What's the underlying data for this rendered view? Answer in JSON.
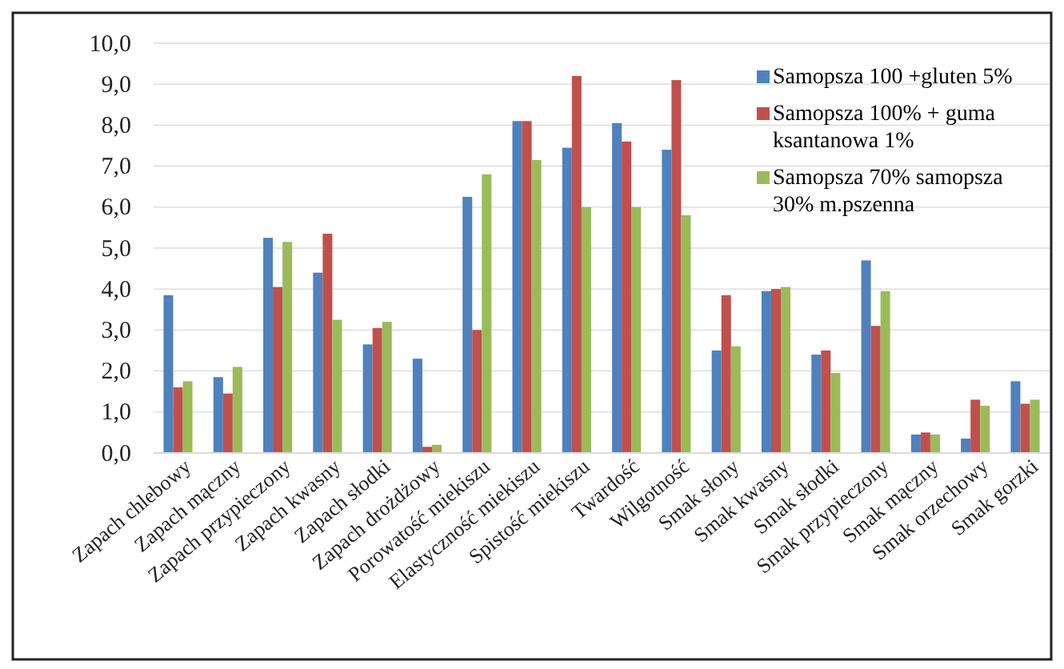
{
  "chart_data": {
    "type": "bar",
    "categories": [
      "Zapach chlebowy",
      "Zapach mączny",
      "Zapach przypieczony",
      "Zapach kwasny",
      "Zapach słodki",
      "Zapach drożdżowy",
      "Porowatość miekiszu",
      "Elastyczność miekiszu",
      "Spistość miekiszu",
      "Twardość",
      "Wilgotność",
      "Smak słony",
      "Smak kwasny",
      "Smak słodki",
      "Smak przypieczony",
      "Smak mączny",
      "Smak orzechowy",
      "Smak gorzki"
    ],
    "series": [
      {
        "name": "Samopsza 100 +gluten 5%",
        "color": "#4f81bd",
        "values": [
          3.85,
          1.85,
          5.25,
          4.4,
          2.65,
          2.3,
          6.25,
          8.1,
          7.45,
          8.05,
          7.4,
          2.5,
          3.95,
          2.4,
          4.7,
          0.45,
          0.35,
          1.75
        ]
      },
      {
        "name": "Samopsza 100% + guma ksantanowa 1%",
        "color": "#c0504d",
        "values": [
          1.6,
          1.45,
          4.05,
          5.35,
          3.05,
          0.15,
          3.0,
          8.1,
          9.2,
          7.6,
          9.1,
          3.85,
          4.0,
          2.5,
          3.1,
          0.5,
          1.3,
          1.2
        ]
      },
      {
        "name": "Samopsza 70% samopsza 30% m.pszenna",
        "color": "#9bbb59",
        "values": [
          1.75,
          2.1,
          5.15,
          3.25,
          3.2,
          0.2,
          6.8,
          7.15,
          6.0,
          6.0,
          5.8,
          2.6,
          4.05,
          1.95,
          3.95,
          0.45,
          1.15,
          1.3
        ]
      }
    ],
    "ylim": [
      0,
      10
    ],
    "yticks": [
      {
        "value": 0,
        "label": "0,0"
      },
      {
        "value": 1,
        "label": "1,0"
      },
      {
        "value": 2,
        "label": "2,0"
      },
      {
        "value": 3,
        "label": "3,0"
      },
      {
        "value": 4,
        "label": "4,0"
      },
      {
        "value": 5,
        "label": "5,0"
      },
      {
        "value": 6,
        "label": "6,0"
      },
      {
        "value": 7,
        "label": "7,0"
      },
      {
        "value": 8,
        "label": "8,0"
      },
      {
        "value": 9,
        "label": "9,0"
      },
      {
        "value": 10,
        "label": "10,0"
      }
    ],
    "grid": "y",
    "legend": "top right"
  }
}
